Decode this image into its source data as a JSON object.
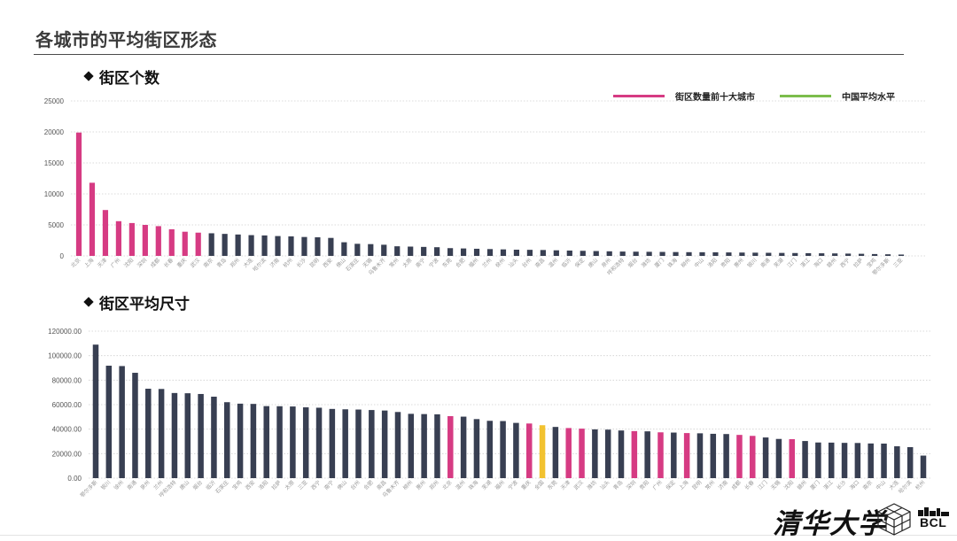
{
  "page": {
    "title": "各城市的平均街区形态"
  },
  "colors": {
    "highlight": "#d63b83",
    "bar": "#383f52",
    "average": "#f2c230",
    "legend_average": "#7cbd4c"
  },
  "logos": {
    "university": "清华大学",
    "lab": "BCL"
  },
  "chart_data": [
    {
      "type": "bar",
      "title": "街区个数",
      "grid": true,
      "legend_position": "top-right",
      "legend": [
        {
          "label": "街区数量前十大城市",
          "color": "#d63b83"
        },
        {
          "label": "中国平均水平",
          "color": "#7cbd4c"
        }
      ],
      "ylim": [
        0,
        25000
      ],
      "yticks": [
        0,
        5000,
        10000,
        15000,
        20000,
        25000
      ],
      "ytick_labels": [
        "0",
        "5000",
        "10000",
        "15000",
        "20000",
        "25000"
      ],
      "highlight_categories": [
        "北京",
        "上海",
        "天津",
        "广州",
        "沈阳",
        "深圳",
        "成都",
        "长春",
        "重庆",
        "武汉"
      ],
      "categories": [
        "北京",
        "上海",
        "天津",
        "广州",
        "沈阳",
        "深圳",
        "成都",
        "长春",
        "重庆",
        "武汉",
        "南京",
        "青岛",
        "郑州",
        "大连",
        "哈尔滨",
        "济南",
        "杭州",
        "长沙",
        "昆明",
        "西安",
        "佛山",
        "石家庄",
        "无锡",
        "乌鲁木齐",
        "常州",
        "太原",
        "南宁",
        "宁波",
        "东莞",
        "合肥",
        "福州",
        "兰州",
        "徐州",
        "汕头",
        "台州",
        "南昌",
        "温州",
        "临沂",
        "保定",
        "唐山",
        "泉州",
        "呼和浩特",
        "烟台",
        "潍坊",
        "厦门",
        "珠海",
        "柳州",
        "中山",
        "洛阳",
        "贵阳",
        "惠州",
        "银川",
        "南通",
        "芜湖",
        "江门",
        "湛江",
        "海口",
        "赣州",
        "西宁",
        "拉萨",
        "宝鸡",
        "鄂尔多斯",
        "三亚"
      ],
      "values": [
        19900,
        11800,
        7400,
        5600,
        5300,
        5000,
        4800,
        4300,
        3900,
        3750,
        3650,
        3550,
        3450,
        3350,
        3300,
        3200,
        3150,
        3050,
        3000,
        2900,
        2200,
        1950,
        1900,
        1800,
        1550,
        1500,
        1450,
        1400,
        1250,
        1200,
        1150,
        1100,
        1050,
        1000,
        980,
        950,
        900,
        860,
        820,
        780,
        740,
        700,
        680,
        660,
        640,
        620,
        600,
        590,
        580,
        560,
        540,
        520,
        500,
        480,
        460,
        440,
        420,
        400,
        370,
        340,
        300,
        260,
        220
      ]
    },
    {
      "type": "bar",
      "title": "街区平均尺寸",
      "grid": true,
      "ylim": [
        0,
        120000
      ],
      "yticks": [
        0,
        20000,
        40000,
        60000,
        80000,
        100000,
        120000
      ],
      "ytick_labels": [
        "0.00",
        "20000.00",
        "40000.00",
        "60000.00",
        "80000.00",
        "100000.00",
        "120000.00"
      ],
      "highlight_categories": [
        "北京",
        "上海",
        "天津",
        "广州",
        "沈阳",
        "深圳",
        "成都",
        "长春",
        "重庆",
        "武汉"
      ],
      "average_category": "全国",
      "categories": [
        "鄂尔多斯",
        "银川",
        "徐州",
        "南通",
        "泉州",
        "兰州",
        "呼和浩特",
        "唐山",
        "烟台",
        "临沂",
        "石家庄",
        "宝鸡",
        "西安",
        "洛阳",
        "拉萨",
        "太原",
        "三亚",
        "西宁",
        "南宁",
        "佛山",
        "台州",
        "合肥",
        "南昌",
        "乌鲁木齐",
        "柳州",
        "惠州",
        "郑州",
        "北京",
        "温州",
        "珠海",
        "芜湖",
        "福州",
        "宁波",
        "重庆",
        "全国",
        "东莞",
        "天津",
        "武汉",
        "潍坊",
        "汕头",
        "青岛",
        "深圳",
        "贵阳",
        "广州",
        "保定",
        "上海",
        "昆明",
        "常州",
        "济南",
        "成都",
        "长春",
        "江门",
        "无锡",
        "沈阳",
        "赣州",
        "厦门",
        "湛江",
        "长沙",
        "海口",
        "南京",
        "中山",
        "大连",
        "哈尔滨",
        "杭州"
      ],
      "values": [
        109000,
        91800,
        91500,
        86000,
        73000,
        72800,
        69500,
        69300,
        68700,
        66500,
        62000,
        60800,
        60600,
        58800,
        58700,
        58500,
        57800,
        57500,
        56500,
        56200,
        56000,
        55600,
        55200,
        54000,
        52500,
        52300,
        52100,
        50600,
        50200,
        48200,
        46800,
        46600,
        45100,
        44600,
        43200,
        41800,
        40900,
        40400,
        39800,
        39600,
        38900,
        38400,
        38200,
        37400,
        37200,
        36800,
        36600,
        36200,
        36000,
        35300,
        34500,
        33200,
        32000,
        31800,
        30300,
        29100,
        29000,
        28800,
        28700,
        28300,
        28200,
        26000,
        25300,
        18400
      ]
    }
  ]
}
